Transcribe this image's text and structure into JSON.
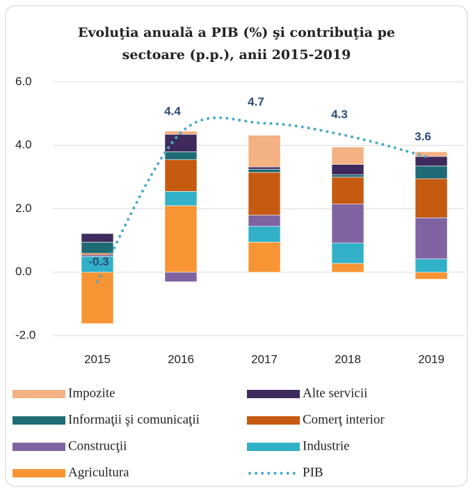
{
  "chart_data": {
    "type": "stacked_bar_line",
    "title": [
      "Evoluţia anuală a PIB (%) şi contribuţia pe",
      "sectoare (p.p.), anii 2015-2019"
    ],
    "categories": [
      "2015",
      "2016",
      "2017",
      "2018",
      "2019"
    ],
    "ylim": [
      -2.0,
      6.0
    ],
    "yticks": [
      {
        "value": -2,
        "label": "-2.0"
      },
      {
        "value": 0,
        "label": "0.0"
      },
      {
        "value": 2,
        "label": "2.0"
      },
      {
        "value": 4,
        "label": "4.0"
      },
      {
        "value": 6,
        "label": "6.0"
      }
    ],
    "grid": true,
    "series": [
      {
        "name": "Agricultura",
        "color": "#f79433",
        "values": [
          -1.62,
          2.1,
          0.95,
          0.28,
          -0.22
        ]
      },
      {
        "name": "Industrie",
        "color": "#31b0c8",
        "values": [
          0.5,
          0.45,
          0.5,
          0.64,
          0.42
        ]
      },
      {
        "name": "Construcţii",
        "color": "#8064a2",
        "values": [
          0.05,
          -0.3,
          0.35,
          1.23,
          1.3
        ]
      },
      {
        "name": "Comerţ interior",
        "color": "#c55a11",
        "values": [
          0.05,
          1.0,
          1.35,
          0.85,
          1.23
        ]
      },
      {
        "name": "Informaţii şi comunicaţii",
        "color": "#1f6b75",
        "values": [
          0.35,
          0.25,
          0.1,
          0.08,
          0.4
        ]
      },
      {
        "name": "Alte servicii",
        "color": "#3e2a5c",
        "values": [
          0.27,
          0.55,
          0.07,
          0.32,
          0.3
        ]
      },
      {
        "name": "Impozite",
        "color": "#f4b183",
        "values": [
          0,
          0.1,
          1.0,
          0.55,
          0.15
        ]
      },
      {
        "name": "PIB",
        "color": "#4bacc6",
        "type": "line",
        "values": [
          -0.3,
          4.4,
          4.7,
          4.3,
          3.6
        ]
      }
    ],
    "legend_order": [
      6,
      5,
      4,
      3,
      2,
      1,
      0,
      7
    ]
  }
}
